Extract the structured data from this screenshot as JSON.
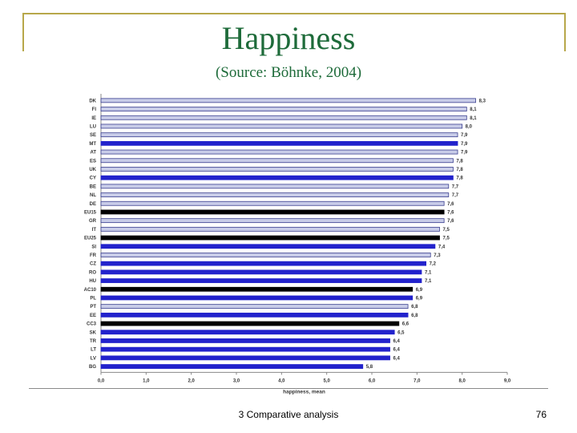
{
  "slide": {
    "title": "Happiness",
    "subtitle": "(Source: Böhnke, 2004)",
    "footer_text": "3 Comparative analysis",
    "page_number": "76"
  },
  "colors": {
    "title": "#1e6b3a",
    "frame": "#b7a74a",
    "highlight": "#2222cc",
    "aggregate": "#000000",
    "default": "#c8cce8"
  },
  "chart_data": {
    "type": "bar",
    "orientation": "horizontal",
    "title": "",
    "xlabel": "happiness, mean",
    "ylabel": "",
    "xlim": [
      0,
      9
    ],
    "x_ticks": [
      "0,0",
      "1,0",
      "2,0",
      "3,0",
      "4,0",
      "5,0",
      "6,0",
      "7,0",
      "8,0",
      "9,0"
    ],
    "grid": false,
    "categories": [
      "DK",
      "FI",
      "IE",
      "LU",
      "SE",
      "MT",
      "AT",
      "ES",
      "UK",
      "CY",
      "BE",
      "NL",
      "DE",
      "EU15",
      "GR",
      "IT",
      "EU25",
      "SI",
      "FR",
      "CZ",
      "RO",
      "HU",
      "AC10",
      "PL",
      "PT",
      "EE",
      "CC3",
      "SK",
      "TR",
      "LT",
      "LV",
      "BG"
    ],
    "values": [
      8.3,
      8.1,
      8.1,
      8.0,
      7.9,
      7.9,
      7.9,
      7.8,
      7.8,
      7.8,
      7.7,
      7.7,
      7.6,
      7.6,
      7.6,
      7.5,
      7.5,
      7.4,
      7.3,
      7.2,
      7.1,
      7.1,
      6.9,
      6.9,
      6.8,
      6.8,
      6.6,
      6.5,
      6.4,
      6.4,
      6.4,
      5.8
    ],
    "value_labels": [
      "8,3",
      "8,1",
      "8,1",
      "8,0",
      "7,9",
      "7,9",
      "7,9",
      "7,8",
      "7,8",
      "7,8",
      "7,7",
      "7,7",
      "7,6",
      "7,6",
      "7,6",
      "7,5",
      "7,5",
      "7,4",
      "7,3",
      "7,2",
      "7,1",
      "7,1",
      "6,9",
      "6,9",
      "6,8",
      "6,8",
      "6,6",
      "6,5",
      "6,4",
      "6,4",
      "6,4",
      "5,8"
    ],
    "bar_style": [
      "default",
      "default",
      "default",
      "default",
      "default",
      "highlight",
      "default",
      "default",
      "default",
      "highlight",
      "default",
      "default",
      "default",
      "aggregate",
      "default",
      "default",
      "aggregate",
      "highlight",
      "default",
      "highlight",
      "highlight",
      "highlight",
      "aggregate",
      "highlight",
      "default",
      "highlight",
      "aggregate",
      "highlight",
      "highlight",
      "highlight",
      "highlight",
      "highlight"
    ]
  }
}
